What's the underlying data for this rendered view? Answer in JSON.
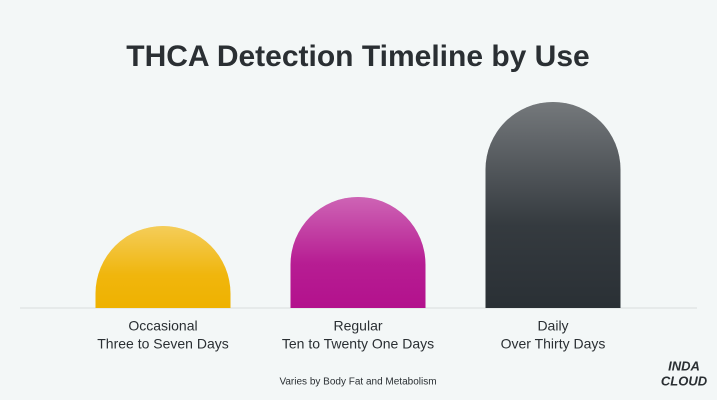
{
  "chart_data": {
    "type": "bar",
    "title": "THCA Detection Timeline by Use",
    "categories": [
      "Occasional",
      "Regular",
      "Daily"
    ],
    "sublabels": [
      "Three to Seven Days",
      "Ten to Twenty One Days",
      "Over Thirty Days"
    ],
    "values": [
      82,
      111,
      206
    ],
    "colors": [
      "#efb200",
      "#b3118d",
      "#2a3035"
    ],
    "ylim": [
      0,
      240
    ],
    "footnote": "Varies by Body Fat and Metabolism"
  },
  "logo": {
    "line1": "INDA",
    "line2": "CLOUD"
  }
}
